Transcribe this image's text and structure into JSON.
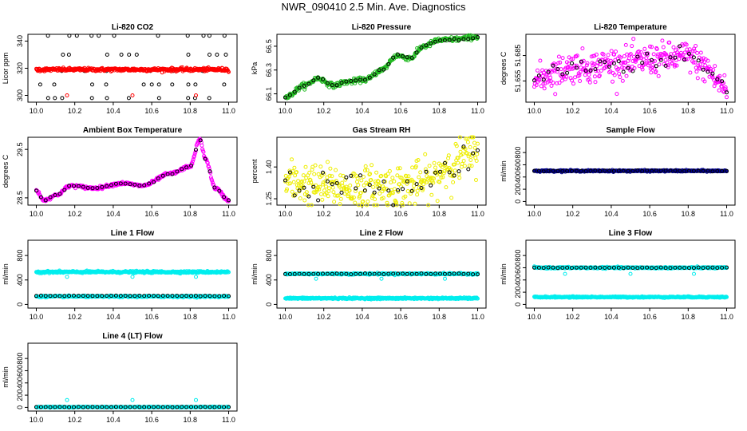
{
  "figure_title": "NWR_090410  2.5 Min. Ave. Diagnostics",
  "chart_data": [
    {
      "type": "scatter",
      "title": "Li-820 CO2",
      "ylabel": "Licor ppm",
      "xlim": [
        10.0,
        11.0
      ],
      "ylim": [
        295,
        345
      ],
      "xticks": [
        "10.0",
        "10.2",
        "10.4",
        "10.6",
        "10.8",
        "11.0"
      ],
      "yticks": [
        "300",
        "320",
        "340"
      ],
      "series": [
        {
          "name": "black",
          "color": "#000000",
          "pattern": "levels",
          "levels": [
            298,
            308,
            318,
            330,
            344
          ],
          "y": 330,
          "noise": 0
        },
        {
          "name": "red",
          "color": "#ff0000",
          "pattern": "constant",
          "y": 319,
          "noise": 0.6,
          "outliers": [
            [
              10.16,
              300
            ],
            [
              10.5,
              300
            ],
            [
              10.83,
              300
            ]
          ]
        }
      ]
    },
    {
      "type": "scatter",
      "title": "Li-820 Pressure",
      "ylabel": "kPa",
      "xlim": [
        10.0,
        11.0
      ],
      "ylim": [
        66.03,
        66.6
      ],
      "xticks": [
        "10.0",
        "10.2",
        "10.4",
        "10.6",
        "10.8",
        "11.0"
      ],
      "yticks": [
        "66.1",
        "66.3",
        "66.5"
      ],
      "series": [
        {
          "name": "green",
          "color": "#22bb22",
          "pattern": "curve",
          "knots": [
            [
              10.0,
              66.07
            ],
            [
              10.1,
              66.17
            ],
            [
              10.17,
              66.23
            ],
            [
              10.25,
              66.17
            ],
            [
              10.32,
              66.2
            ],
            [
              10.42,
              66.22
            ],
            [
              10.5,
              66.3
            ],
            [
              10.58,
              66.42
            ],
            [
              10.65,
              66.4
            ],
            [
              10.72,
              66.5
            ],
            [
              10.8,
              66.55
            ],
            [
              10.9,
              66.56
            ],
            [
              11.0,
              66.58
            ]
          ],
          "noise": 0.01
        },
        {
          "name": "black",
          "color": "#000000",
          "pattern": "curve",
          "knots": [
            [
              10.0,
              66.07
            ],
            [
              10.1,
              66.17
            ],
            [
              10.17,
              66.23
            ],
            [
              10.25,
              66.17
            ],
            [
              10.32,
              66.2
            ],
            [
              10.42,
              66.22
            ],
            [
              10.5,
              66.3
            ],
            [
              10.58,
              66.42
            ],
            [
              10.65,
              66.4
            ],
            [
              10.72,
              66.5
            ],
            [
              10.8,
              66.55
            ],
            [
              10.9,
              66.56
            ],
            [
              11.0,
              66.58
            ]
          ],
          "noise": 0.004,
          "sparse": true
        }
      ]
    },
    {
      "type": "scatter",
      "title": "Li-820 Temperature",
      "ylabel": "degrees C",
      "xlim": [
        10.0,
        11.0
      ],
      "ylim": [
        51.63,
        51.71
      ],
      "xticks": [
        "10.0",
        "10.2",
        "10.4",
        "10.6",
        "10.8",
        "11.0"
      ],
      "yticks": [
        "51.655",
        "51.685"
      ],
      "series": [
        {
          "name": "magenta",
          "color": "#ff00ff",
          "pattern": "curve",
          "knots": [
            [
              10.0,
              51.655
            ],
            [
              10.1,
              51.665
            ],
            [
              10.2,
              51.672
            ],
            [
              10.3,
              51.672
            ],
            [
              10.4,
              51.676
            ],
            [
              10.5,
              51.676
            ],
            [
              10.6,
              51.68
            ],
            [
              10.7,
              51.682
            ],
            [
              10.8,
              51.684
            ],
            [
              10.9,
              51.67
            ],
            [
              10.95,
              51.655
            ],
            [
              11.0,
              51.645
            ]
          ],
          "noise": 0.009
        },
        {
          "name": "black",
          "color": "#000000",
          "pattern": "curve",
          "knots": [
            [
              10.0,
              51.655
            ],
            [
              10.1,
              51.665
            ],
            [
              10.2,
              51.672
            ],
            [
              10.3,
              51.672
            ],
            [
              10.4,
              51.676
            ],
            [
              10.5,
              51.676
            ],
            [
              10.6,
              51.68
            ],
            [
              10.7,
              51.682
            ],
            [
              10.8,
              51.684
            ],
            [
              10.9,
              51.67
            ],
            [
              10.95,
              51.655
            ],
            [
              11.0,
              51.645
            ]
          ],
          "noise": 0.006,
          "sparse": true
        }
      ]
    },
    {
      "type": "scatter",
      "title": "Ambient Box Temperature",
      "ylabel": "degrees C",
      "xlim": [
        10.0,
        11.0
      ],
      "ylim": [
        28.35,
        29.75
      ],
      "xticks": [
        "10.0",
        "10.2",
        "10.4",
        "10.6",
        "10.8",
        "11.0"
      ],
      "yticks": [
        "28.5",
        "29.5"
      ],
      "series": [
        {
          "name": "magenta",
          "color": "#ff00ff",
          "pattern": "curve",
          "knots": [
            [
              10.0,
              28.65
            ],
            [
              10.04,
              28.45
            ],
            [
              10.1,
              28.55
            ],
            [
              10.18,
              28.75
            ],
            [
              10.3,
              28.7
            ],
            [
              10.45,
              28.8
            ],
            [
              10.55,
              28.75
            ],
            [
              10.7,
              29.0
            ],
            [
              10.8,
              29.15
            ],
            [
              10.85,
              29.7
            ],
            [
              10.88,
              29.3
            ],
            [
              10.93,
              28.7
            ],
            [
              11.0,
              28.45
            ]
          ],
          "noise": 0.015
        },
        {
          "name": "black",
          "color": "#000000",
          "pattern": "curve",
          "knots": [
            [
              10.0,
              28.65
            ],
            [
              10.04,
              28.45
            ],
            [
              10.1,
              28.55
            ],
            [
              10.18,
              28.75
            ],
            [
              10.3,
              28.7
            ],
            [
              10.45,
              28.8
            ],
            [
              10.55,
              28.75
            ],
            [
              10.7,
              29.0
            ],
            [
              10.8,
              29.15
            ],
            [
              10.85,
              29.7
            ],
            [
              10.88,
              29.3
            ],
            [
              10.93,
              28.7
            ],
            [
              11.0,
              28.45
            ]
          ],
          "noise": 0.005,
          "sparse": true
        }
      ]
    },
    {
      "type": "scatter",
      "title": "Gas Stream RH",
      "ylabel": "percent",
      "xlim": [
        10.0,
        11.0
      ],
      "ylim": [
        1.22,
        1.54
      ],
      "xticks": [
        "10.0",
        "10.2",
        "10.4",
        "10.6",
        "10.8",
        "11.0"
      ],
      "yticks": [
        "1.25",
        "1.40"
      ],
      "series": [
        {
          "name": "yellow",
          "color": "#eeee00",
          "pattern": "curve",
          "knots": [
            [
              10.0,
              1.33
            ],
            [
              10.2,
              1.31
            ],
            [
              10.4,
              1.3
            ],
            [
              10.6,
              1.31
            ],
            [
              10.75,
              1.33
            ],
            [
              10.85,
              1.41
            ],
            [
              11.0,
              1.47
            ]
          ],
          "noise": 0.05
        },
        {
          "name": "black",
          "color": "#000000",
          "pattern": "curve",
          "knots": [
            [
              10.0,
              1.33
            ],
            [
              10.2,
              1.31
            ],
            [
              10.4,
              1.3
            ],
            [
              10.6,
              1.31
            ],
            [
              10.75,
              1.33
            ],
            [
              10.85,
              1.41
            ],
            [
              11.0,
              1.47
            ]
          ],
          "noise": 0.04,
          "sparse": true
        }
      ]
    },
    {
      "type": "scatter",
      "title": "Sample Flow",
      "ylabel": "ml/min",
      "xlim": [
        10.0,
        11.0
      ],
      "ylim": [
        -60,
        1050
      ],
      "xticks": [
        "10.0",
        "10.2",
        "10.4",
        "10.6",
        "10.8",
        "11.0"
      ],
      "yticks": [
        "0",
        "200",
        "400",
        "600",
        "800"
      ],
      "series": [
        {
          "name": "darkblue",
          "color": "#00008b",
          "pattern": "constant",
          "y": 500,
          "noise": 6
        },
        {
          "name": "black",
          "color": "#000000",
          "pattern": "constant",
          "y": 500,
          "noise": 3,
          "sparse": true
        }
      ]
    },
    {
      "type": "scatter",
      "title": "Line 1 Flow",
      "ylabel": "ml/min",
      "xlim": [
        10.0,
        11.0
      ],
      "ylim": [
        -60,
        1050
      ],
      "xticks": [
        "10.0",
        "10.2",
        "10.4",
        "10.6",
        "10.8",
        "11.0"
      ],
      "yticks": [
        "0",
        "400",
        "800"
      ],
      "series": [
        {
          "name": "cyan-high",
          "color": "#00eeee",
          "pattern": "constant",
          "y": 530,
          "noise": 8,
          "outliers": [
            [
              10.16,
              450
            ],
            [
              10.5,
              450
            ],
            [
              10.83,
              450
            ]
          ]
        },
        {
          "name": "cyan-low",
          "color": "#00eeee",
          "pattern": "constant",
          "y": 130,
          "noise": 6
        },
        {
          "name": "black",
          "color": "#000000",
          "pattern": "constant",
          "y": 140,
          "noise": 2,
          "sparse": true
        }
      ]
    },
    {
      "type": "scatter",
      "title": "Line 2 Flow",
      "ylabel": "ml/min",
      "xlim": [
        10.0,
        11.0
      ],
      "ylim": [
        -60,
        1050
      ],
      "xticks": [
        "10.0",
        "10.2",
        "10.4",
        "10.6",
        "10.8",
        "11.0"
      ],
      "yticks": [
        "0",
        "400",
        "800"
      ],
      "series": [
        {
          "name": "cyan-high",
          "color": "#00eeee",
          "pattern": "constant",
          "y": 500,
          "noise": 6,
          "outliers": [
            [
              10.16,
              420
            ],
            [
              10.5,
              420
            ],
            [
              10.83,
              420
            ]
          ]
        },
        {
          "name": "cyan-low",
          "color": "#00eeee",
          "pattern": "constant",
          "y": 100,
          "noise": 6
        },
        {
          "name": "black",
          "color": "#000000",
          "pattern": "constant",
          "y": 500,
          "noise": 3,
          "sparse": true
        }
      ]
    },
    {
      "type": "scatter",
      "title": "Line 3 Flow",
      "ylabel": "ml/min",
      "xlim": [
        10.0,
        11.0
      ],
      "ylim": [
        -60,
        1050
      ],
      "xticks": [
        "10.0",
        "10.2",
        "10.4",
        "10.6",
        "10.8",
        "11.0"
      ],
      "yticks": [
        "0",
        "200",
        "400",
        "600",
        "800"
      ],
      "series": [
        {
          "name": "cyan-high",
          "color": "#00eeee",
          "pattern": "constant",
          "y": 600,
          "noise": 6,
          "outliers": [
            [
              10.16,
              500
            ],
            [
              10.5,
              500
            ],
            [
              10.83,
              500
            ]
          ]
        },
        {
          "name": "cyan-low",
          "color": "#00eeee",
          "pattern": "constant",
          "y": 120,
          "noise": 5
        },
        {
          "name": "black",
          "color": "#000000",
          "pattern": "constant",
          "y": 600,
          "noise": 3,
          "sparse": true
        }
      ]
    },
    {
      "type": "scatter",
      "title": "Line 4 (LT) Flow",
      "ylabel": "ml/min",
      "xlim": [
        10.0,
        11.0
      ],
      "ylim": [
        -60,
        1050
      ],
      "xticks": [
        "10.0",
        "10.2",
        "10.4",
        "10.6",
        "10.8",
        "11.0"
      ],
      "yticks": [
        "0",
        "200",
        "400",
        "600",
        "800"
      ],
      "series": [
        {
          "name": "cyan",
          "color": "#00eeee",
          "pattern": "constant",
          "y": 5,
          "noise": 3,
          "outliers": [
            [
              10.16,
              120
            ],
            [
              10.5,
              120
            ],
            [
              10.83,
              120
            ]
          ]
        },
        {
          "name": "black",
          "color": "#000000",
          "pattern": "constant",
          "y": 5,
          "noise": 1,
          "sparse": true
        }
      ]
    }
  ]
}
